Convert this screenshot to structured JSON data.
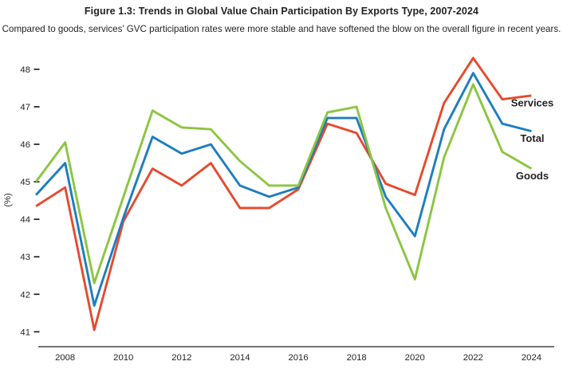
{
  "header": {
    "title": "Figure 1.3: Trends in Global Value Chain Participation By Exports Type, 2007-2024",
    "subtitle": "Compared to goods, services’ GVC participation rates were more stable and have softened the blow on the overall figure in recent years."
  },
  "chart_data": {
    "type": "line",
    "title": "Figure 1.3: Trends in Global Value Chain Participation By Exports Type, 2007-2024",
    "subtitle": "Compared to goods, services’ GVC participation rates were more stable and have softened the blow on the overall figure in recent years.",
    "xlabel": "",
    "ylabel": "(%)",
    "x": [
      2007,
      2008,
      2009,
      2010,
      2011,
      2012,
      2013,
      2014,
      2015,
      2016,
      2017,
      2018,
      2019,
      2020,
      2021,
      2022,
      2023,
      2024
    ],
    "x_tick_labels": [
      "2008",
      "2010",
      "2012",
      "2014",
      "2016",
      "2018",
      "2020",
      "2022",
      "2024"
    ],
    "y_ticks": [
      41,
      42,
      43,
      44,
      45,
      46,
      47,
      48
    ],
    "ylim": [
      40.6,
      48.6
    ],
    "grid": false,
    "legend_position": "right-end-of-lines",
    "series": [
      {
        "name": "Services",
        "color": "#e64a2e",
        "values": [
          44.35,
          44.85,
          41.05,
          43.95,
          45.35,
          44.9,
          45.5,
          44.3,
          44.3,
          44.8,
          46.55,
          46.3,
          44.95,
          44.65,
          47.1,
          48.3,
          47.2,
          47.3
        ]
      },
      {
        "name": "Total",
        "color": "#1d7dbf",
        "values": [
          44.65,
          45.5,
          41.7,
          44.05,
          46.2,
          45.75,
          46.0,
          44.9,
          44.6,
          44.85,
          46.7,
          46.7,
          44.6,
          43.55,
          46.4,
          47.9,
          46.55,
          46.35
        ]
      },
      {
        "name": "Goods",
        "color": "#8bc540",
        "values": [
          45.0,
          46.05,
          42.3,
          44.6,
          46.9,
          46.45,
          46.4,
          45.55,
          44.9,
          44.9,
          46.85,
          47.0,
          44.3,
          42.4,
          45.65,
          47.6,
          45.8,
          45.35
        ]
      }
    ],
    "colors": {
      "axis": "#231f20",
      "text": "#231f20"
    }
  }
}
